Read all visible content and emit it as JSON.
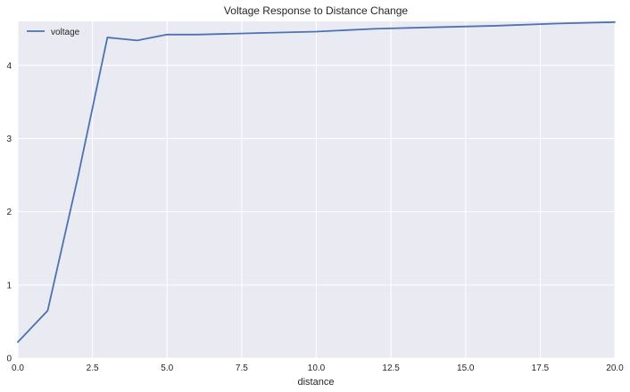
{
  "chart_data": {
    "type": "line",
    "title": "Voltage Response to Distance Change",
    "xlabel": "distance",
    "ylabel": "",
    "xlim": [
      0,
      20
    ],
    "ylim": [
      0,
      4.6
    ],
    "xticks": [
      0,
      2.5,
      5,
      7.5,
      10,
      12.5,
      15,
      17.5,
      20
    ],
    "xtick_labels": [
      "0.0",
      "2.5",
      "5.0",
      "7.5",
      "10.0",
      "12.5",
      "15.0",
      "17.5",
      "20.0"
    ],
    "yticks": [
      0,
      1,
      2,
      3,
      4
    ],
    "ytick_labels": [
      "0",
      "1",
      "2",
      "3",
      "4"
    ],
    "grid": true,
    "legend_position": "top-left",
    "series": [
      {
        "name": "voltage",
        "color": "#4c72b0",
        "x": [
          0,
          1,
          2,
          3,
          4,
          5,
          6,
          8,
          10,
          12,
          14,
          16,
          18,
          20
        ],
        "y": [
          0.22,
          0.65,
          2.45,
          4.38,
          4.34,
          4.42,
          4.42,
          4.44,
          4.46,
          4.5,
          4.52,
          4.54,
          4.57,
          4.59
        ]
      }
    ]
  }
}
